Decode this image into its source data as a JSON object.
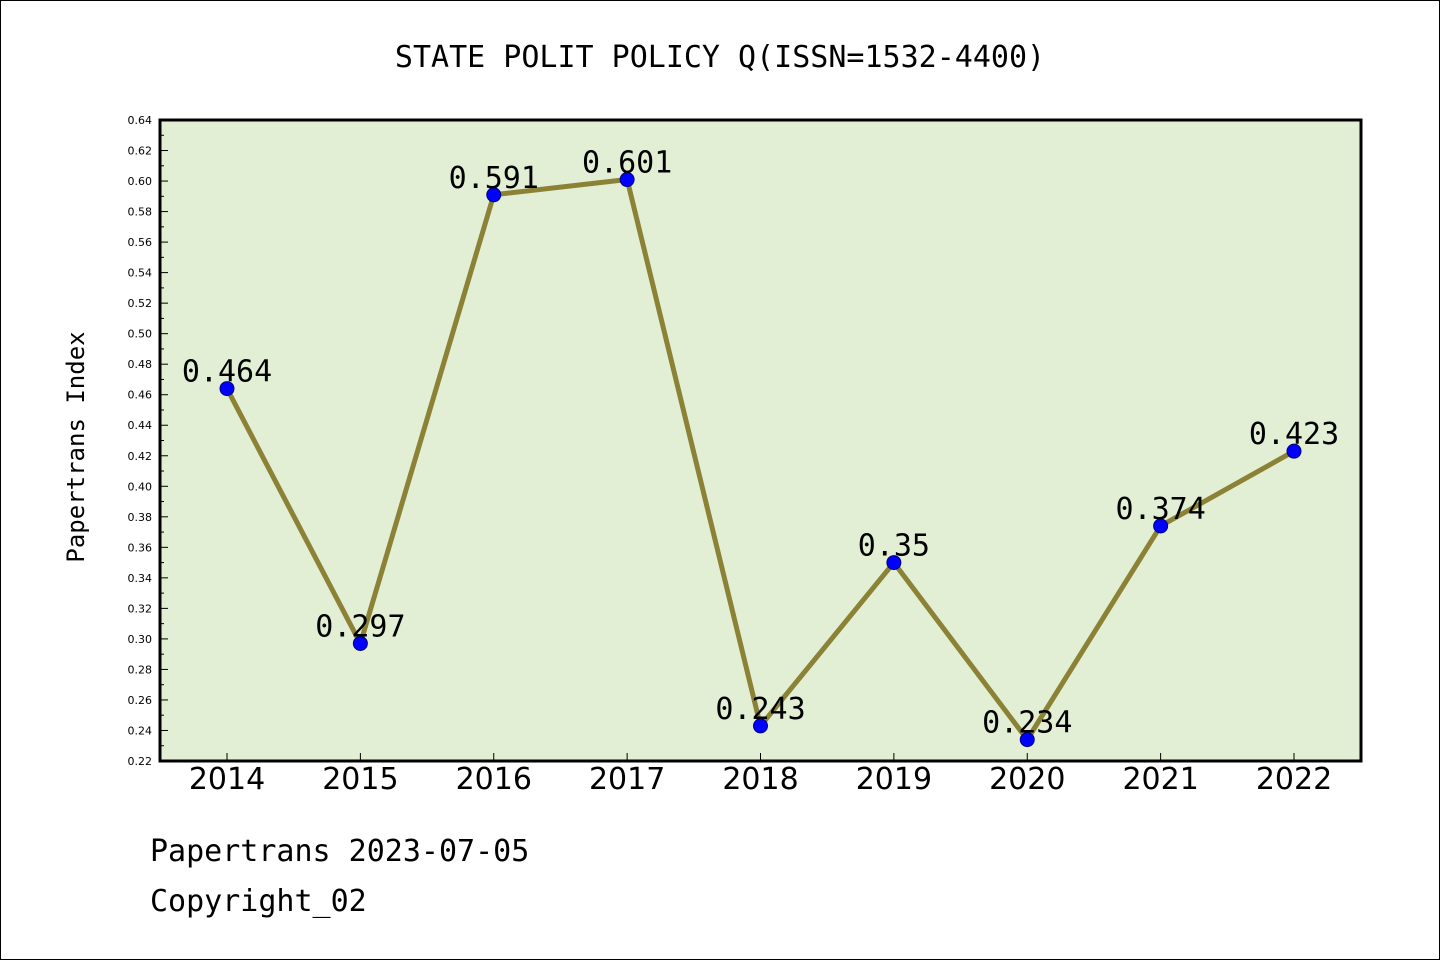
{
  "chart_data": {
    "type": "line",
    "title": "STATE POLIT POLICY Q(ISSN=1532-4400)",
    "xlabel": "",
    "ylabel": "Papertrans Index",
    "categories": [
      "2014",
      "2015",
      "2016",
      "2017",
      "2018",
      "2019",
      "2020",
      "2021",
      "2022"
    ],
    "values": [
      0.464,
      0.297,
      0.591,
      0.601,
      0.243,
      0.35,
      0.234,
      0.374,
      0.423
    ],
    "data_labels": [
      "0.464",
      "0.297",
      "0.591",
      "0.601",
      "0.243",
      "0.35",
      "0.234",
      "0.374",
      "0.423"
    ],
    "ylim": [
      0.22,
      0.64
    ],
    "yticks": [
      "0.22",
      "0.24",
      "0.26",
      "0.28",
      "0.30",
      "0.32",
      "0.34",
      "0.36",
      "0.38",
      "0.40",
      "0.42",
      "0.44",
      "0.46",
      "0.48",
      "0.50",
      "0.52",
      "0.54",
      "0.56",
      "0.58",
      "0.60",
      "0.62",
      "0.64"
    ],
    "grid": false,
    "legend": "none",
    "colors": {
      "plot_background": "#e2efd5",
      "line": "#8b8236",
      "marker": "#0000ff"
    }
  },
  "footer": {
    "line1": "Papertrans 2023-07-05",
    "line2": "Copyright_02"
  }
}
